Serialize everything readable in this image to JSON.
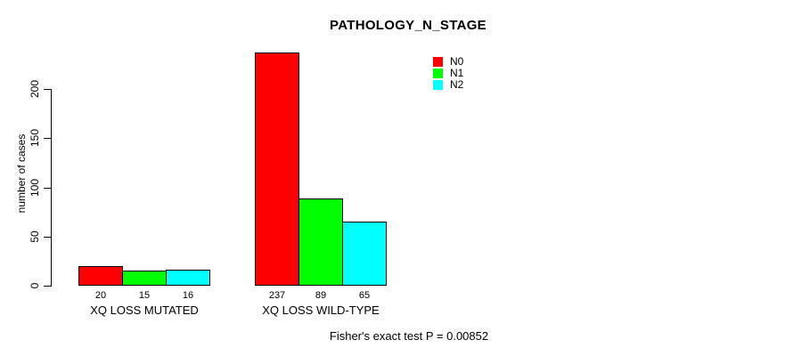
{
  "title": "PATHOLOGY_N_STAGE",
  "footnote": "Fisher's exact test P = 0.00852",
  "chart_data": {
    "type": "bar",
    "title": "PATHOLOGY_N_STAGE",
    "categories": [
      "XQ LOSS MUTATED",
      "XQ LOSS WILD-TYPE"
    ],
    "series": [
      {
        "name": "N0",
        "color": "#ff0000",
        "values": [
          20,
          237
        ]
      },
      {
        "name": "N1",
        "color": "#00ff00",
        "values": [
          15,
          89
        ]
      },
      {
        "name": "N2",
        "color": "#00ffff",
        "values": [
          16,
          65
        ]
      }
    ],
    "xlabel": "",
    "ylabel": "number of cases",
    "yticks": [
      0,
      50,
      100,
      150,
      200
    ],
    "ylim": [
      0,
      240
    ],
    "grid": false,
    "legend_position": "top-right",
    "bar_value_labels_shown": true,
    "annotation": "Fisher's exact test P = 0.00852"
  }
}
